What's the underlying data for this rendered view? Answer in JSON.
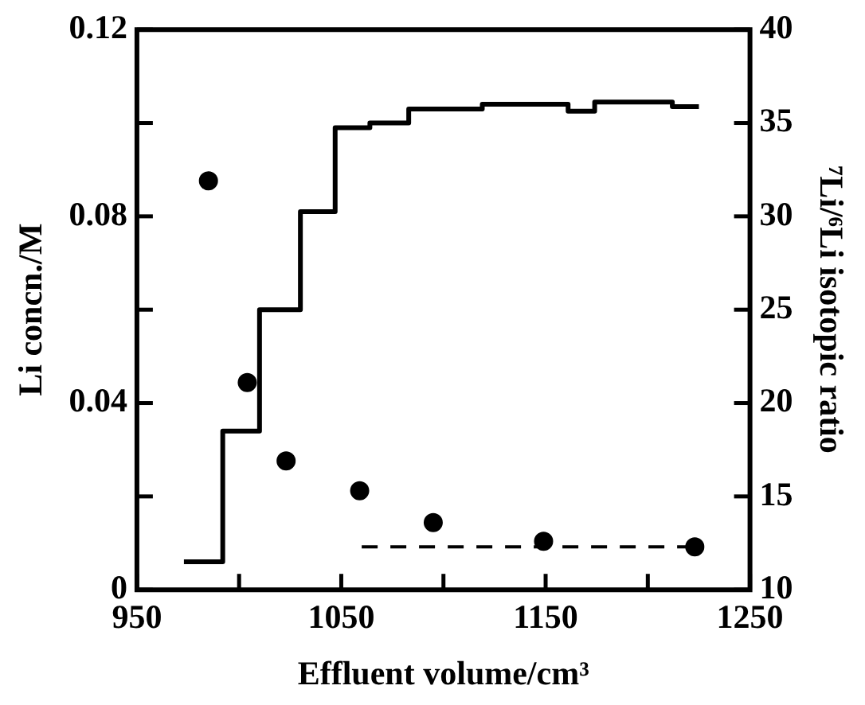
{
  "chart_data": {
    "type": "step",
    "xlabel": "Effluent volume/cm³",
    "ylabel": "Li concn./M",
    "y2label": "⁷Li/⁶Li isotopic ratio",
    "xlim": [
      950,
      1250
    ],
    "xticks": [
      950,
      {
        "value": 1000,
        "label": null
      },
      1050,
      {
        "value": 1100,
        "label": null
      },
      1150,
      {
        "value": 1200,
        "label": null
      },
      1250
    ],
    "ylim": [
      0,
      0.12
    ],
    "yticks": [
      0,
      {
        "value": 0.02,
        "label": null
      },
      0.04,
      {
        "value": 0.06,
        "label": null
      },
      0.08,
      {
        "value": 0.1,
        "label": null
      },
      0.12
    ],
    "y2lim": [
      10,
      40
    ],
    "y2ticks": [
      10,
      15,
      20,
      25,
      30,
      35,
      40
    ],
    "grid": false,
    "legend": false,
    "series": [
      {
        "type": "step",
        "color": "#000000",
        "x": [
          973,
          992,
          1010,
          1030,
          1047,
          1064,
          1083,
          1119,
          1161,
          1174,
          1212,
          1225
        ],
        "values": [
          0.006,
          0.034,
          0.06,
          0.081,
          0.099,
          0.1,
          0.103,
          0.104,
          0.1025,
          0.1045,
          0.1035,
          0.1035
        ]
      },
      {
        "type": "scatter",
        "axis": "y2",
        "marker": "circle",
        "color": "#000000",
        "x": [
          985,
          1004,
          1023,
          1059,
          1095,
          1149,
          1223
        ],
        "values": [
          31.9,
          21.1,
          16.9,
          15.3,
          13.6,
          12.6,
          12.3
        ]
      },
      {
        "type": "line",
        "axis": "y2",
        "line_style": "dashed",
        "marker": "none",
        "color": "#000000",
        "x": [
          1060,
          1225
        ],
        "values": [
          12.3,
          12.3
        ]
      }
    ]
  }
}
